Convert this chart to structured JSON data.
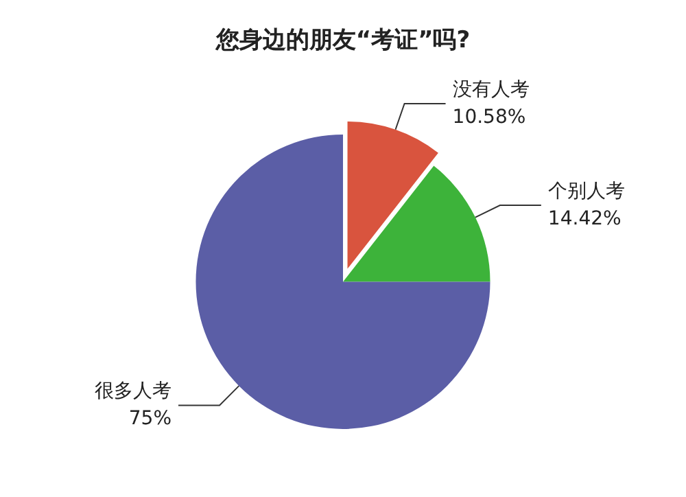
{
  "chart_data": {
    "type": "pie",
    "title": "您身边的朋友“考证”吗?",
    "categories": [
      "没有人考",
      "个别人考",
      "很多人考"
    ],
    "values": [
      10.58,
      14.42,
      75
    ],
    "colors": [
      "#d9543e",
      "#3db33a",
      "#5b5ea6"
    ],
    "value_labels": [
      "10.58%",
      "14.42%",
      "75%"
    ]
  }
}
